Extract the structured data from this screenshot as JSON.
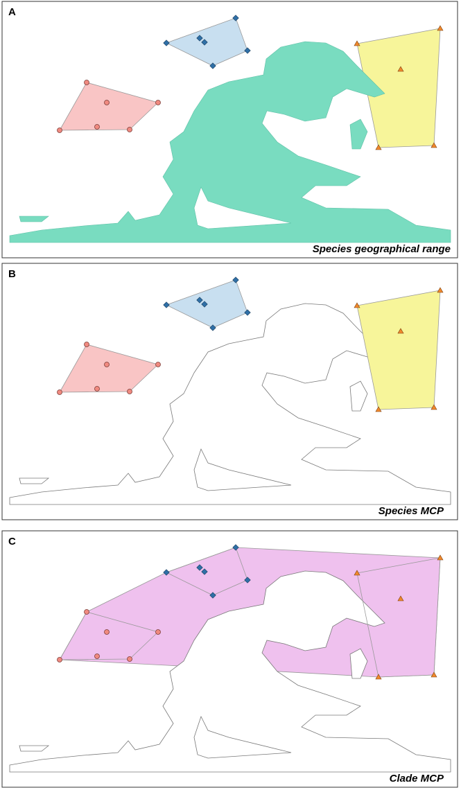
{
  "panels": [
    {
      "label": "A",
      "caption": "Species geographical range"
    },
    {
      "label": "B",
      "caption": "Species MCP"
    },
    {
      "label": "C",
      "caption": "Clade MCP"
    }
  ]
}
